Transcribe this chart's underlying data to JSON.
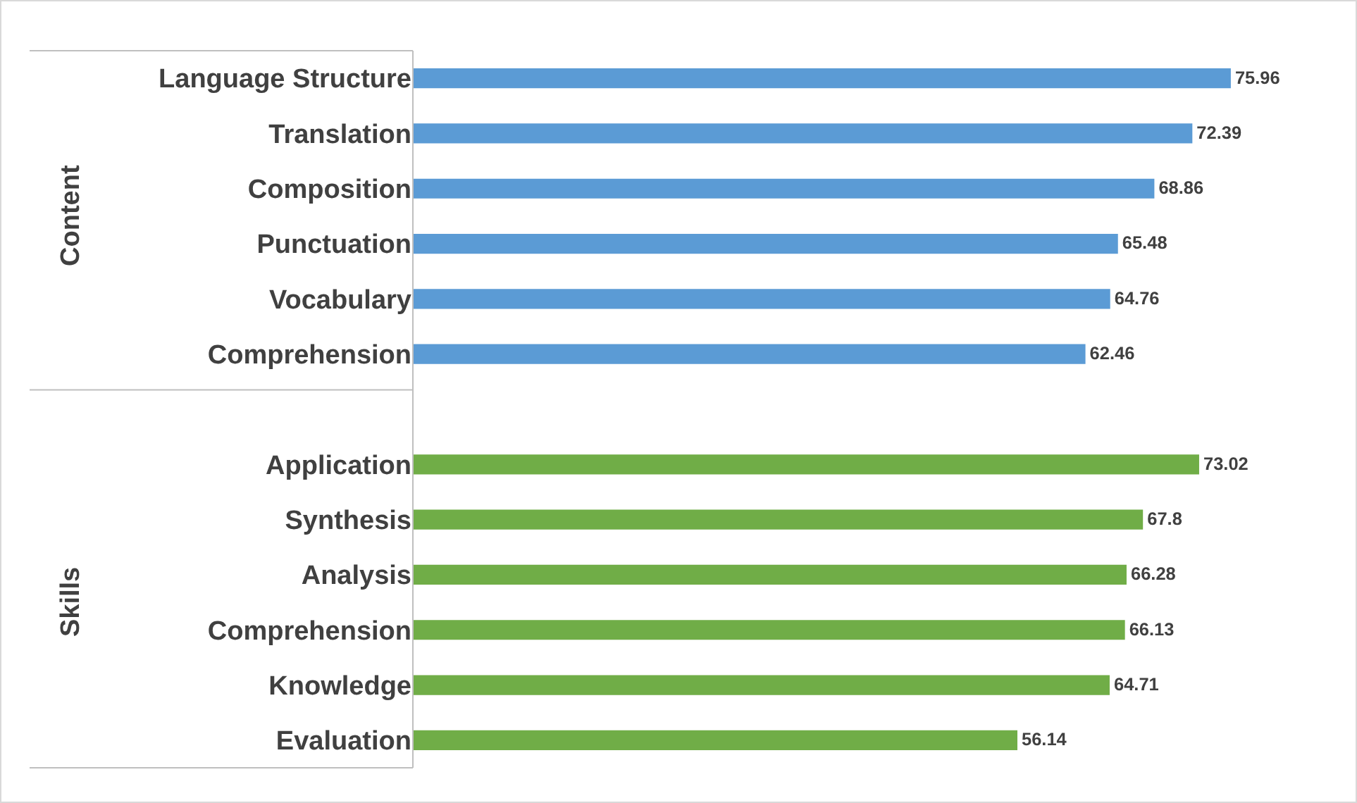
{
  "chart_data": {
    "type": "bar",
    "orientation": "horizontal",
    "categories": [
      "Language Structure",
      "Translation",
      "Composition",
      "Punctuation",
      "Vocabulary",
      "Comprehension",
      null,
      "Application",
      "Synthesis",
      "Analysis",
      "Comprehension",
      "Knowledge",
      "Evaluation"
    ],
    "values": [
      75.96,
      72.39,
      68.86,
      65.48,
      64.76,
      62.46,
      null,
      73.02,
      67.8,
      66.28,
      66.13,
      64.71,
      56.14
    ],
    "colors": [
      "#5b9bd5",
      "#5b9bd5",
      "#5b9bd5",
      "#5b9bd5",
      "#5b9bd5",
      "#5b9bd5",
      null,
      "#70ad47",
      "#70ad47",
      "#70ad47",
      "#70ad47",
      "#70ad47",
      "#70ad47"
    ],
    "data_labels": true,
    "annotations": [
      "Content",
      "Skills"
    ]
  }
}
